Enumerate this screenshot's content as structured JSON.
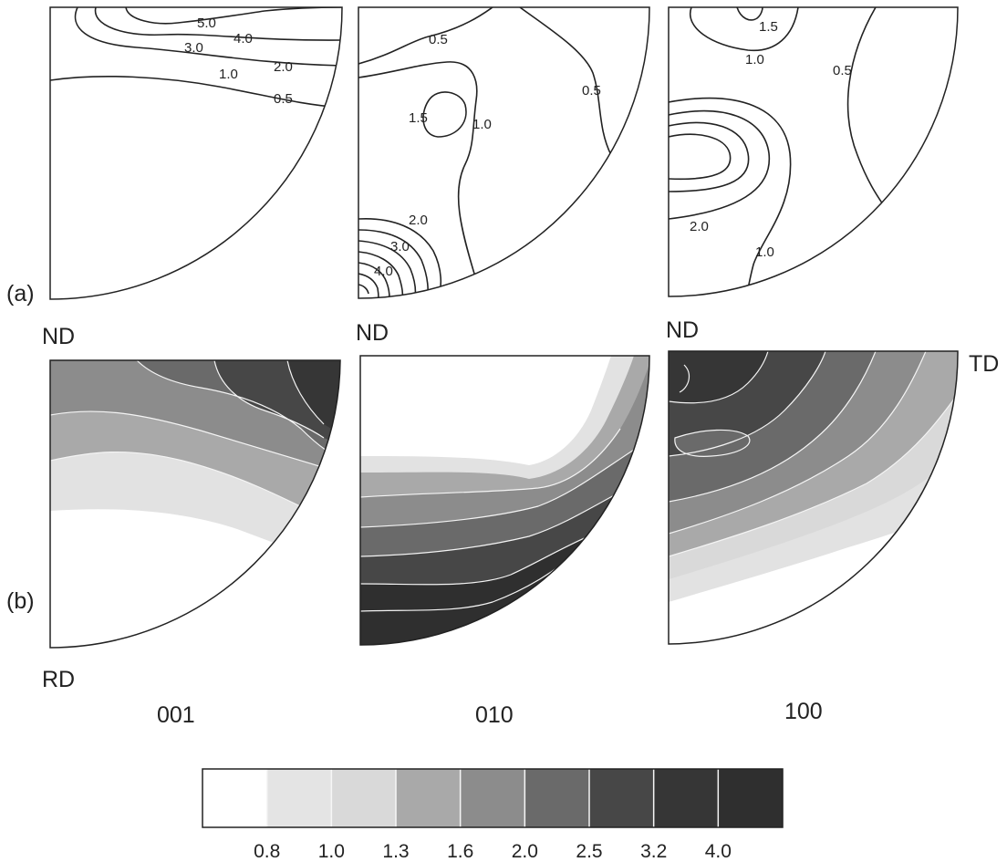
{
  "figure": {
    "panel_a_label": "(a)",
    "panel_b_label": "(b)",
    "axis_labels": {
      "nd": "ND",
      "rd": "RD",
      "td": "TD"
    },
    "pole_figures": [
      "001",
      "010",
      "100"
    ]
  },
  "contour_labels": {
    "a_001": [
      "5.0",
      "4.0",
      "3.0",
      "2.0",
      "1.0",
      "0.5"
    ],
    "a_010": [
      "0.5",
      "0.5",
      "1.5",
      "1.0",
      "2.0",
      "3.0",
      "4.0"
    ],
    "a_100": [
      "1.5",
      "1.0",
      "0.5",
      "2.0",
      "1.0"
    ]
  },
  "legend": {
    "ticks": [
      "0.8",
      "1.0",
      "1.3",
      "1.6",
      "2.0",
      "2.5",
      "3.2",
      "4.0"
    ],
    "colors": [
      "#ffffff",
      "#e4e4e4",
      "#d9d9d9",
      "#a9a9a9",
      "#8c8c8c",
      "#6a6a6a",
      "#474747",
      "#363636",
      "#2f2f2f"
    ]
  }
}
